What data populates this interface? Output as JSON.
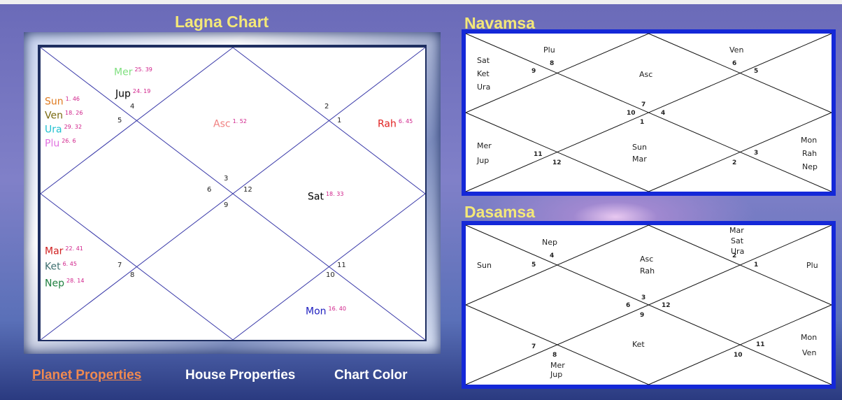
{
  "lagna": {
    "title": "Lagna Chart",
    "houses": [
      "4",
      "5",
      "2",
      "1",
      "3",
      "6",
      "12",
      "9",
      "7",
      "8",
      "11",
      "10"
    ],
    "planets": [
      {
        "name": "Mer",
        "degree": "25. 39",
        "color": "#80e080"
      },
      {
        "name": "Jup",
        "degree": "24. 19",
        "color": "#000000"
      },
      {
        "name": "Sun",
        "degree": "1. 46",
        "color": "#e07b20"
      },
      {
        "name": "Ven",
        "degree": "18. 26",
        "color": "#7a6a10"
      },
      {
        "name": "Ura",
        "degree": "29. 32",
        "color": "#20c0d0"
      },
      {
        "name": "Plu",
        "degree": "26. 6",
        "color": "#e070e0"
      },
      {
        "name": "Asc",
        "degree": "1. 52",
        "color": "#f08080"
      },
      {
        "name": "Rah",
        "degree": "6. 45",
        "color": "#e02020"
      },
      {
        "name": "Sat",
        "degree": "18. 33",
        "color": "#000000"
      },
      {
        "name": "Mar",
        "degree": "22. 41",
        "color": "#d02020"
      },
      {
        "name": "Ket",
        "degree": "6. 45",
        "color": "#407070"
      },
      {
        "name": "Nep",
        "degree": "28. 14",
        "color": "#208040"
      },
      {
        "name": "Mon",
        "degree": "16. 40",
        "color": "#2020c0"
      }
    ]
  },
  "navamsa": {
    "title": "Navamsa",
    "houses": [
      "8",
      "9",
      "6",
      "5",
      "7",
      "10",
      "4",
      "1",
      "11",
      "12",
      "3",
      "2"
    ],
    "planets": [
      "Plu",
      "Sat",
      "Ket",
      "Ura",
      "Asc",
      "Ven",
      "Mer",
      "Jup",
      "Sun",
      "Mar",
      "Mon",
      "Rah",
      "Nep"
    ]
  },
  "dasamsa": {
    "title": "Dasamsa",
    "houses": [
      "4",
      "5",
      "2",
      "1",
      "3",
      "6",
      "12",
      "9",
      "7",
      "8",
      "11",
      "10"
    ],
    "planets": [
      "Nep",
      "Sun",
      "Asc",
      "Rah",
      "Mar",
      "Sat",
      "Ura",
      "Plu",
      "Mer",
      "Jup",
      "Ket",
      "Mon",
      "Ven"
    ]
  },
  "menu": [
    "Planet Properties",
    "House Properties",
    "Chart Color"
  ]
}
